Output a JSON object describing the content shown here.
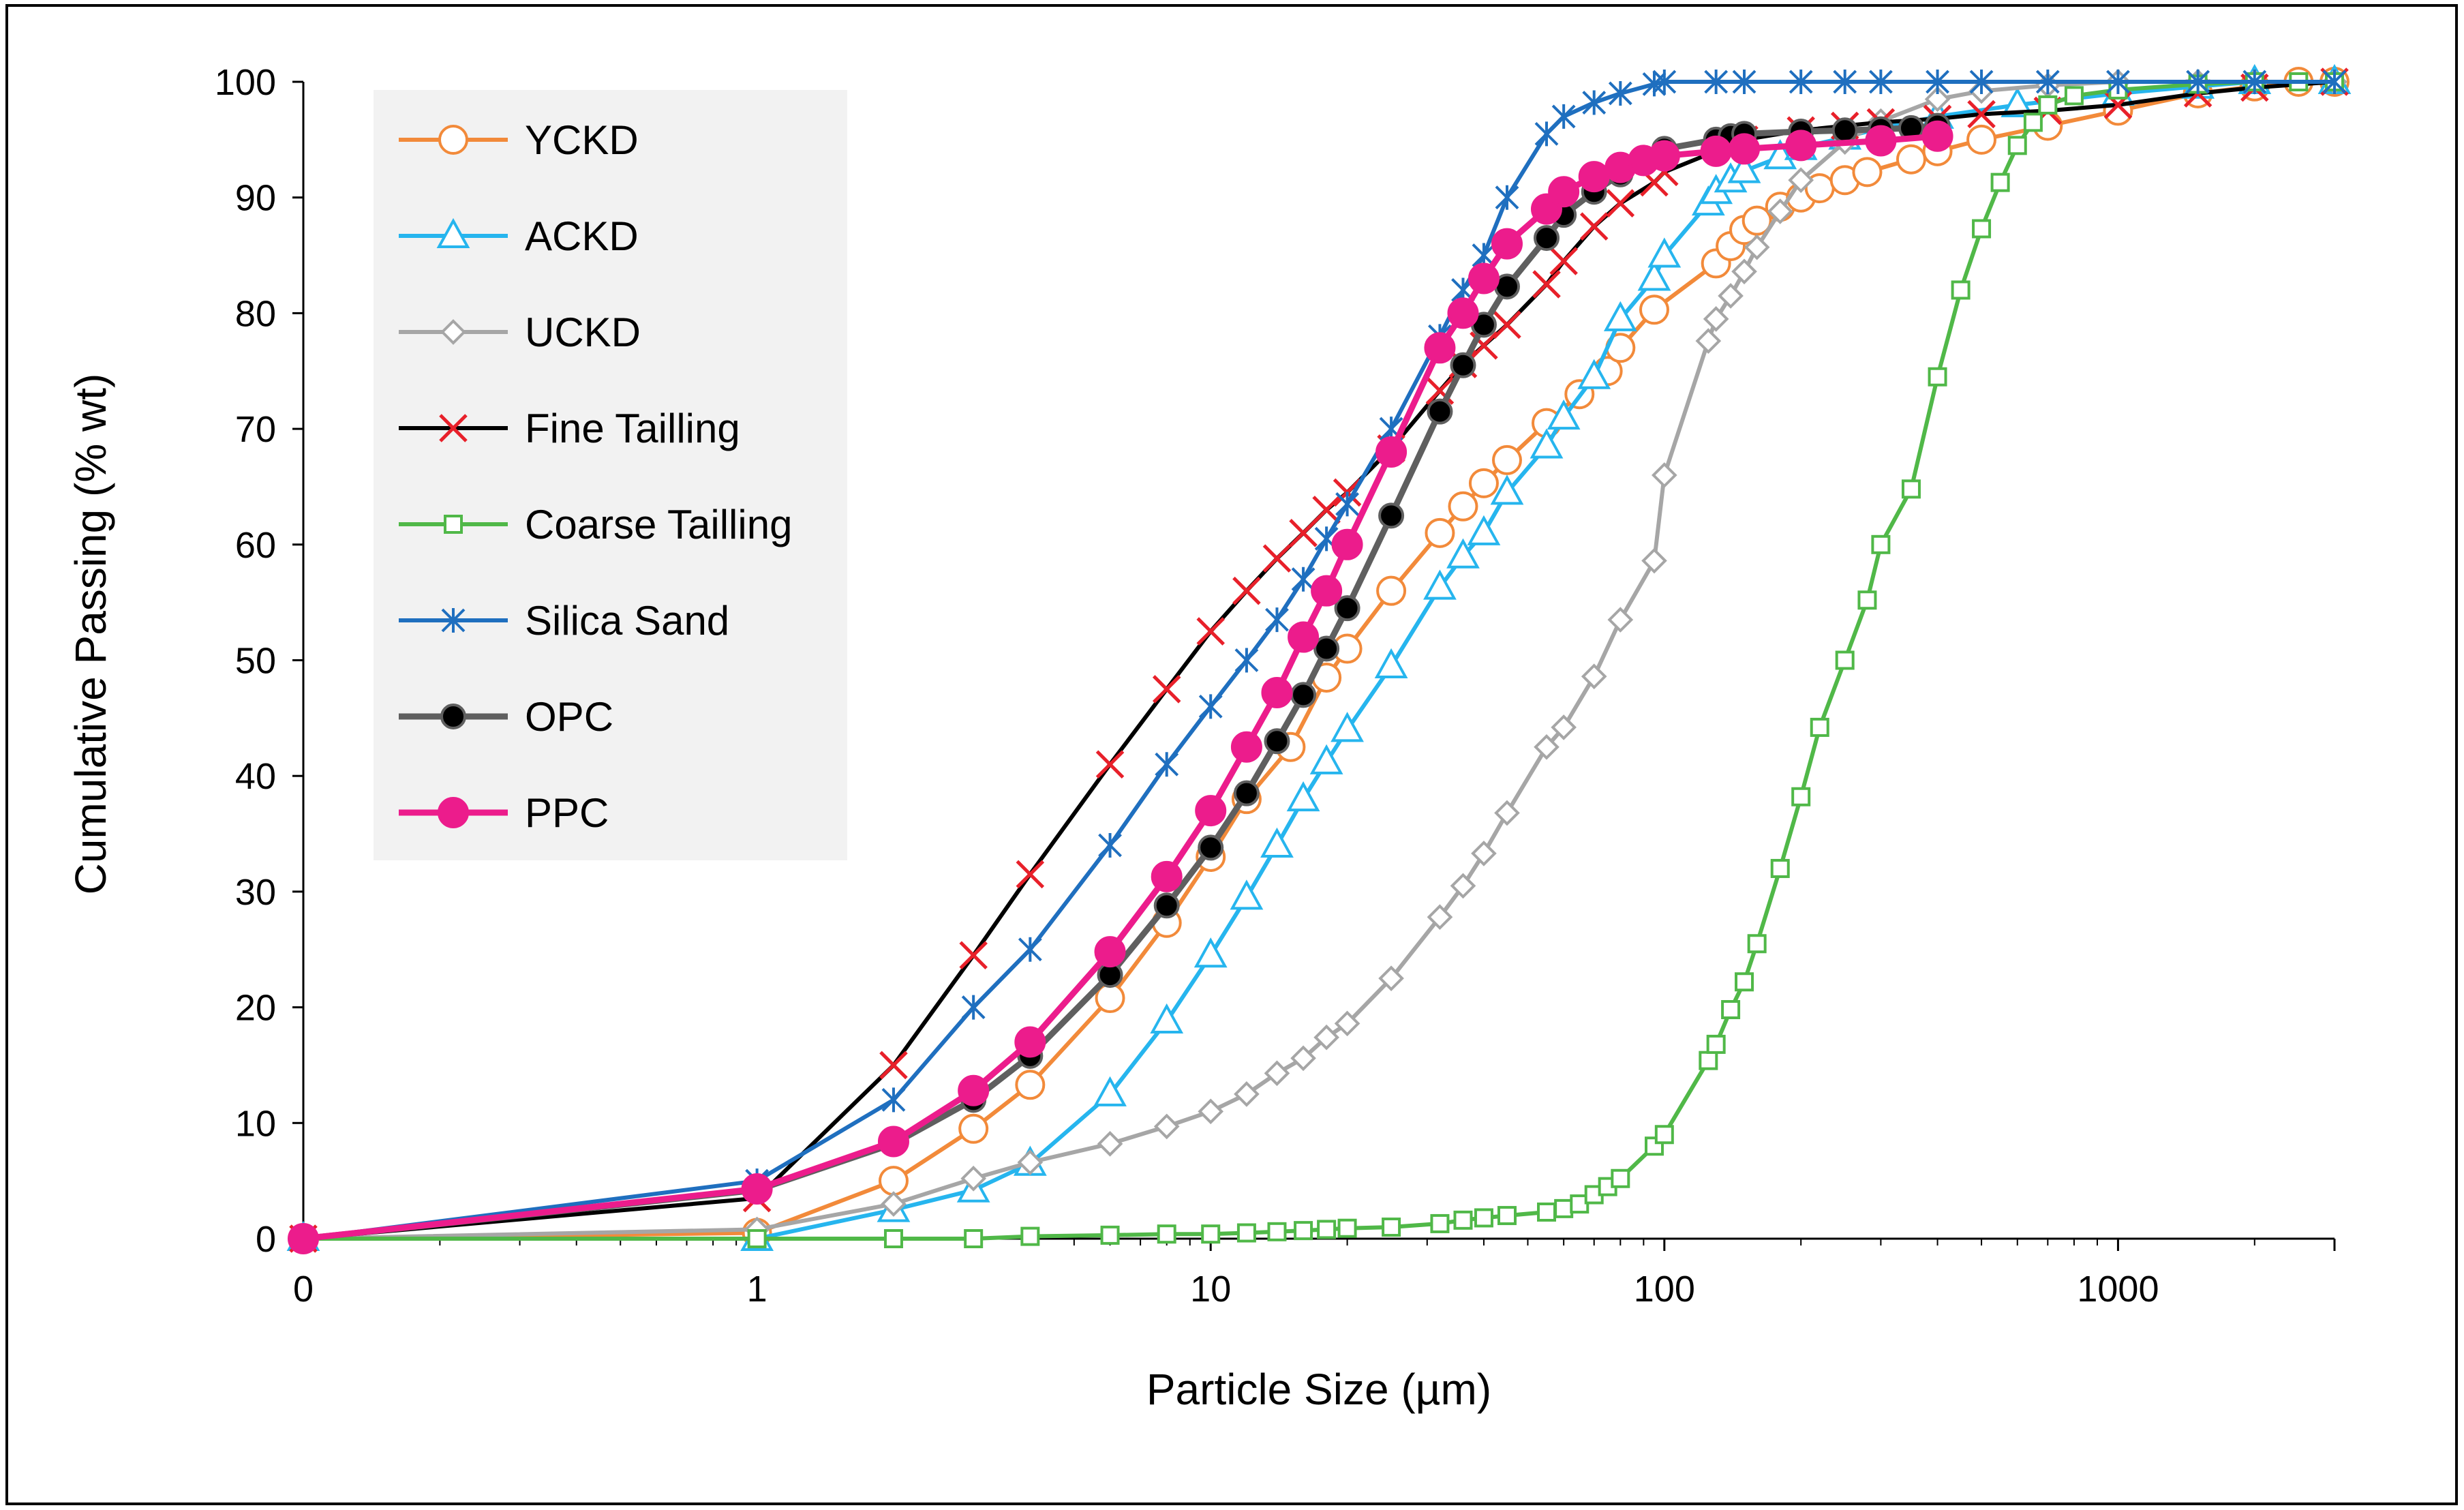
{
  "chart_data": {
    "type": "line",
    "title": "",
    "xlabel": "Particle Size (µm)",
    "ylabel": "Cumulative Passing (% wt)",
    "x_scale": "log",
    "x_ticks": [
      "0",
      "1",
      "10",
      "100",
      "1000"
    ],
    "x_tick_values": [
      0.1,
      1,
      10,
      100,
      1000
    ],
    "xlim": [
      0.1,
      3000
    ],
    "ylim": [
      0,
      100
    ],
    "y_ticks": [
      0,
      10,
      20,
      30,
      40,
      50,
      60,
      70,
      80,
      90,
      100
    ],
    "grid": false,
    "legend_position": "top-left",
    "series": [
      {
        "name": "YCKD",
        "color": "#F28A3A",
        "marker": "circle-open",
        "x": [
          0.1,
          1,
          2,
          3,
          4,
          6,
          8,
          10,
          12,
          15,
          18,
          20,
          25,
          32,
          36,
          40,
          45,
          55,
          65,
          75,
          80,
          95,
          130,
          140,
          150,
          160,
          180,
          200,
          220,
          250,
          280,
          350,
          400,
          500,
          700,
          1000,
          1500,
          2000,
          2500,
          3000
        ],
        "y": [
          0,
          0.5,
          5,
          9.5,
          13.3,
          20.8,
          27.3,
          33,
          38,
          42.5,
          48.5,
          51,
          56,
          61,
          63.3,
          65.3,
          67.3,
          70.5,
          73,
          75,
          77,
          80.3,
          84.3,
          85.8,
          87.2,
          88,
          89.2,
          90,
          90.8,
          91.5,
          92.2,
          93.3,
          94,
          95,
          96.2,
          97.5,
          99,
          99.6,
          100,
          100
        ]
      },
      {
        "name": "ACKD",
        "color": "#26B5EE",
        "marker": "triangle-open",
        "x": [
          0.1,
          1,
          2,
          3,
          4,
          6,
          8,
          10,
          12,
          14,
          16,
          18,
          20,
          25,
          32,
          36,
          40,
          45,
          55,
          60,
          70,
          80,
          95,
          100,
          125,
          130,
          140,
          150,
          180,
          200,
          250,
          300,
          400,
          600,
          1000,
          1500,
          2000,
          3000
        ],
        "y": [
          0,
          0,
          2.5,
          4.2,
          6.5,
          12.5,
          18.8,
          24.5,
          29.5,
          34,
          38,
          41.2,
          44,
          49.5,
          56.3,
          59,
          61,
          64.5,
          68.5,
          71,
          74.5,
          79.5,
          83,
          85,
          89.5,
          90.5,
          91.5,
          92.3,
          93.5,
          94.3,
          95.2,
          96,
          97,
          98,
          99,
          99.6,
          100,
          100
        ]
      },
      {
        "name": "UCKD",
        "color": "#A6A6A6",
        "marker": "diamond-open",
        "x": [
          0.1,
          1,
          2,
          3,
          4,
          6,
          8,
          10,
          12,
          14,
          16,
          18,
          20,
          25,
          32,
          36,
          40,
          45,
          55,
          60,
          70,
          80,
          95,
          100,
          125,
          130,
          140,
          150,
          160,
          180,
          200,
          250,
          300,
          400,
          500,
          700,
          1000,
          1500,
          2000,
          3000
        ],
        "y": [
          0,
          0.8,
          3,
          5.2,
          6.6,
          8.2,
          9.7,
          11,
          12.5,
          14.3,
          15.6,
          17.4,
          18.6,
          22.5,
          27.8,
          30.5,
          33.3,
          36.8,
          42.5,
          44.2,
          48.6,
          53.5,
          58.6,
          66,
          77.6,
          79.5,
          81.5,
          83.6,
          85.7,
          88.8,
          91.5,
          94.8,
          96.6,
          98.5,
          99.2,
          99.7,
          100,
          100,
          100,
          100
        ]
      },
      {
        "name": "Fine Tailling",
        "color": "#E8202A",
        "line_color": "#000000",
        "marker": "x",
        "x": [
          0.1,
          1,
          2,
          3,
          4,
          6,
          8,
          10,
          12,
          14,
          16,
          18,
          20,
          25,
          32,
          36,
          40,
          45,
          55,
          60,
          70,
          80,
          95,
          100,
          150,
          200,
          250,
          300,
          400,
          500,
          700,
          1000,
          1500,
          2000,
          3000
        ],
        "y": [
          0,
          3.5,
          15,
          24.5,
          31.5,
          41,
          47.5,
          52.5,
          56,
          58.8,
          61,
          63,
          64.5,
          68.3,
          73.3,
          75.6,
          77.2,
          79,
          82.5,
          84.5,
          87.5,
          89.5,
          91.3,
          92.2,
          95,
          95.8,
          96.2,
          96.5,
          96.8,
          97.2,
          97.5,
          98,
          99,
          99.5,
          100
        ]
      },
      {
        "name": "Coarse Tailling",
        "color": "#50B848",
        "marker": "square-open",
        "x": [
          0.1,
          1,
          2,
          3,
          4,
          6,
          8,
          10,
          12,
          14,
          16,
          18,
          20,
          25,
          32,
          36,
          40,
          45,
          55,
          60,
          65,
          70,
          75,
          80,
          95,
          100,
          125,
          130,
          140,
          150,
          160,
          180,
          200,
          220,
          250,
          280,
          300,
          350,
          400,
          450,
          500,
          550,
          600,
          650,
          700,
          800,
          1000,
          1500,
          2000,
          2500,
          3000
        ],
        "y": [
          0,
          0,
          0,
          0,
          0.2,
          0.3,
          0.4,
          0.4,
          0.5,
          0.6,
          0.7,
          0.8,
          0.9,
          1,
          1.3,
          1.6,
          1.8,
          2,
          2.3,
          2.6,
          3,
          3.8,
          4.5,
          5.2,
          8,
          9,
          15.4,
          16.8,
          19.8,
          22.2,
          25.5,
          32,
          38.2,
          44.2,
          50,
          55.2,
          60,
          64.8,
          74.5,
          82,
          87.3,
          91.3,
          94.5,
          96.5,
          98,
          98.8,
          99.3,
          99.8,
          100,
          100,
          100
        ]
      },
      {
        "name": "Silica Sand",
        "color": "#1F6FBF",
        "marker": "asterisk",
        "x": [
          0.1,
          1,
          2,
          3,
          4,
          6,
          8,
          10,
          12,
          14,
          16,
          18,
          20,
          25,
          32,
          36,
          40,
          45,
          55,
          60,
          70,
          80,
          95,
          100,
          130,
          150,
          200,
          250,
          300,
          400,
          500,
          700,
          1000,
          1500,
          2000,
          3000
        ],
        "y": [
          0,
          5,
          12,
          20,
          25,
          34,
          41,
          46,
          50,
          53.5,
          57,
          60.5,
          63.5,
          70,
          78,
          82,
          85,
          90,
          95.5,
          97,
          98.2,
          99,
          99.8,
          100,
          100,
          100,
          100,
          100,
          100,
          100,
          100,
          100,
          100,
          100,
          100,
          100
        ]
      },
      {
        "name": "OPC",
        "color": "#5F5F5F",
        "marker_fill": "#000000",
        "marker": "circle-filled",
        "x": [
          0.1,
          1,
          2,
          3,
          4,
          6,
          8,
          10,
          12,
          14,
          16,
          18,
          20,
          25,
          32,
          36,
          40,
          45,
          55,
          60,
          70,
          80,
          90,
          100,
          130,
          140,
          150,
          200,
          250,
          300,
          350,
          400
        ],
        "y": [
          0,
          4.2,
          8.2,
          12,
          15.8,
          22.8,
          28.8,
          33.8,
          38.5,
          43,
          47,
          51,
          54.5,
          62.5,
          71.5,
          75.5,
          79,
          82.3,
          86.5,
          88.5,
          90.5,
          92,
          93.2,
          94.2,
          95,
          95.3,
          95.5,
          95.7,
          95.8,
          95.9,
          96,
          96.2
        ]
      },
      {
        "name": "PPC",
        "color": "#EC1C8C",
        "marker": "circle-filled",
        "x": [
          0.1,
          1,
          2,
          3,
          4,
          6,
          8,
          10,
          12,
          14,
          16,
          18,
          20,
          25,
          32,
          36,
          40,
          45,
          55,
          60,
          70,
          80,
          90,
          100,
          130,
          150,
          200,
          300,
          400
        ],
        "y": [
          0,
          4.3,
          8.4,
          12.8,
          17,
          24.8,
          31.3,
          37,
          42.5,
          47.2,
          52,
          56,
          60,
          68,
          77,
          80,
          83,
          86,
          89,
          90.5,
          91.8,
          92.6,
          93.2,
          93.6,
          94,
          94.2,
          94.5,
          94.9,
          95.3
        ]
      }
    ]
  }
}
